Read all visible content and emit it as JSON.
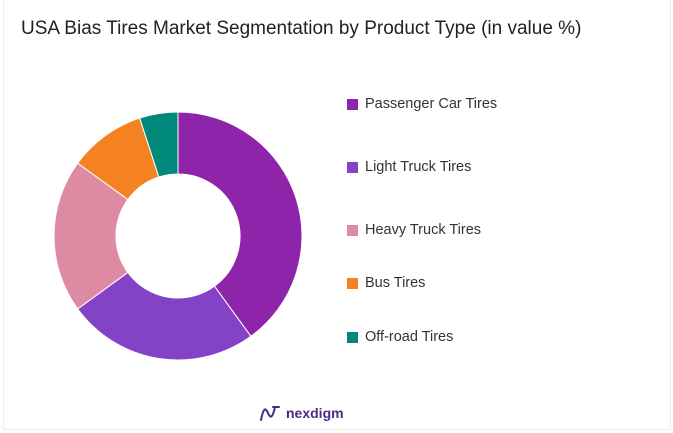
{
  "chart_data": {
    "type": "pie",
    "variant": "donut",
    "title": "USA Bias Tires Market Segmentation by Product Type (in value %)",
    "categories": [
      "Passenger Car Tires",
      "Light Truck Tires",
      "Heavy Truck Tires",
      "Bus Tires",
      "Off-road Tires"
    ],
    "values": [
      40,
      25,
      20,
      10,
      5
    ],
    "colors": [
      "#8e24aa",
      "#8442c6",
      "#de8aa2",
      "#f58220",
      "#00897b"
    ],
    "legend": "right"
  },
  "brand": {
    "name": "nexdigm",
    "icon": "nexdigm-logo-icon"
  }
}
